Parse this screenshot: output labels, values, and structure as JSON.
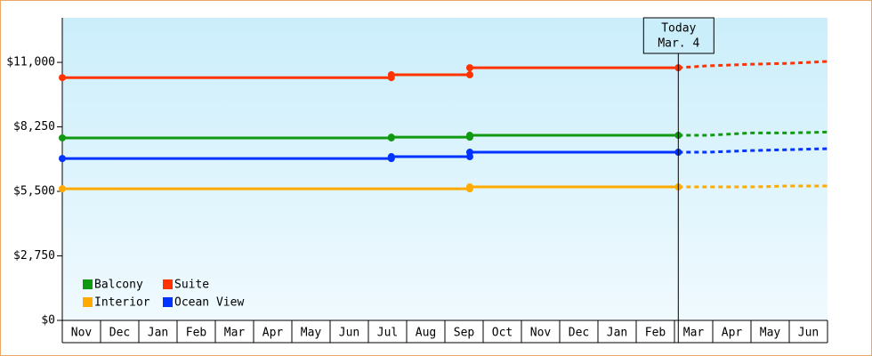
{
  "chart_data": {
    "type": "line",
    "x": [
      0,
      8.6,
      8.6,
      10.65,
      10.65,
      16.1,
      16.85,
      18,
      19,
      20
    ],
    "xlim": [
      0,
      20
    ],
    "xticks": [
      {
        "value": 0.5,
        "label": "Nov"
      },
      {
        "value": 1.5,
        "label": "Dec"
      },
      {
        "value": 2.5,
        "label": "Jan"
      },
      {
        "value": 3.5,
        "label": "Feb"
      },
      {
        "value": 4.5,
        "label": "Mar"
      },
      {
        "value": 5.5,
        "label": "Apr"
      },
      {
        "value": 6.5,
        "label": "May"
      },
      {
        "value": 7.5,
        "label": "Jun"
      },
      {
        "value": 8.5,
        "label": "Jul"
      },
      {
        "value": 9.5,
        "label": "Aug"
      },
      {
        "value": 10.5,
        "label": "Sep"
      },
      {
        "value": 11.5,
        "label": "Oct"
      },
      {
        "value": 12.5,
        "label": "Nov"
      },
      {
        "value": 13.5,
        "label": "Dec"
      },
      {
        "value": 14.5,
        "label": "Jan"
      },
      {
        "value": 15.5,
        "label": "Feb"
      },
      {
        "value": 16.5,
        "label": "Mar"
      },
      {
        "value": 17.5,
        "label": "Apr"
      },
      {
        "value": 18.5,
        "label": "May"
      },
      {
        "value": 19.5,
        "label": "Jun"
      }
    ],
    "ylim": [
      0,
      12900
    ],
    "yticks": [
      {
        "value": 0,
        "label": "$0"
      },
      {
        "value": 2750,
        "label": "$2,750"
      },
      {
        "value": 5500,
        "label": "$5,500"
      },
      {
        "value": 8250,
        "label": "$8,250"
      },
      {
        "value": 11000,
        "label": "$11,000"
      }
    ],
    "today_x": 16.1,
    "today_label": [
      "Today",
      "Mar. 4"
    ],
    "series": [
      {
        "name": "Balcony",
        "color": "#119911",
        "values": [
          7780,
          7780,
          7810,
          7810,
          7890,
          7890,
          7890,
          7990,
          7990,
          8030
        ]
      },
      {
        "name": "Suite",
        "color": "#ff3300",
        "values": [
          10350,
          10350,
          10470,
          10470,
          10770,
          10770,
          10850,
          10920,
          10960,
          11040
        ]
      },
      {
        "name": "Interior",
        "color": "#ffaa00",
        "values": [
          5610,
          5610,
          5610,
          5610,
          5690,
          5690,
          5690,
          5690,
          5730,
          5730
        ]
      },
      {
        "name": "Ocean View",
        "color": "#0033ff",
        "values": [
          6900,
          6900,
          6980,
          6980,
          7170,
          7170,
          7170,
          7240,
          7280,
          7320
        ]
      }
    ]
  }
}
